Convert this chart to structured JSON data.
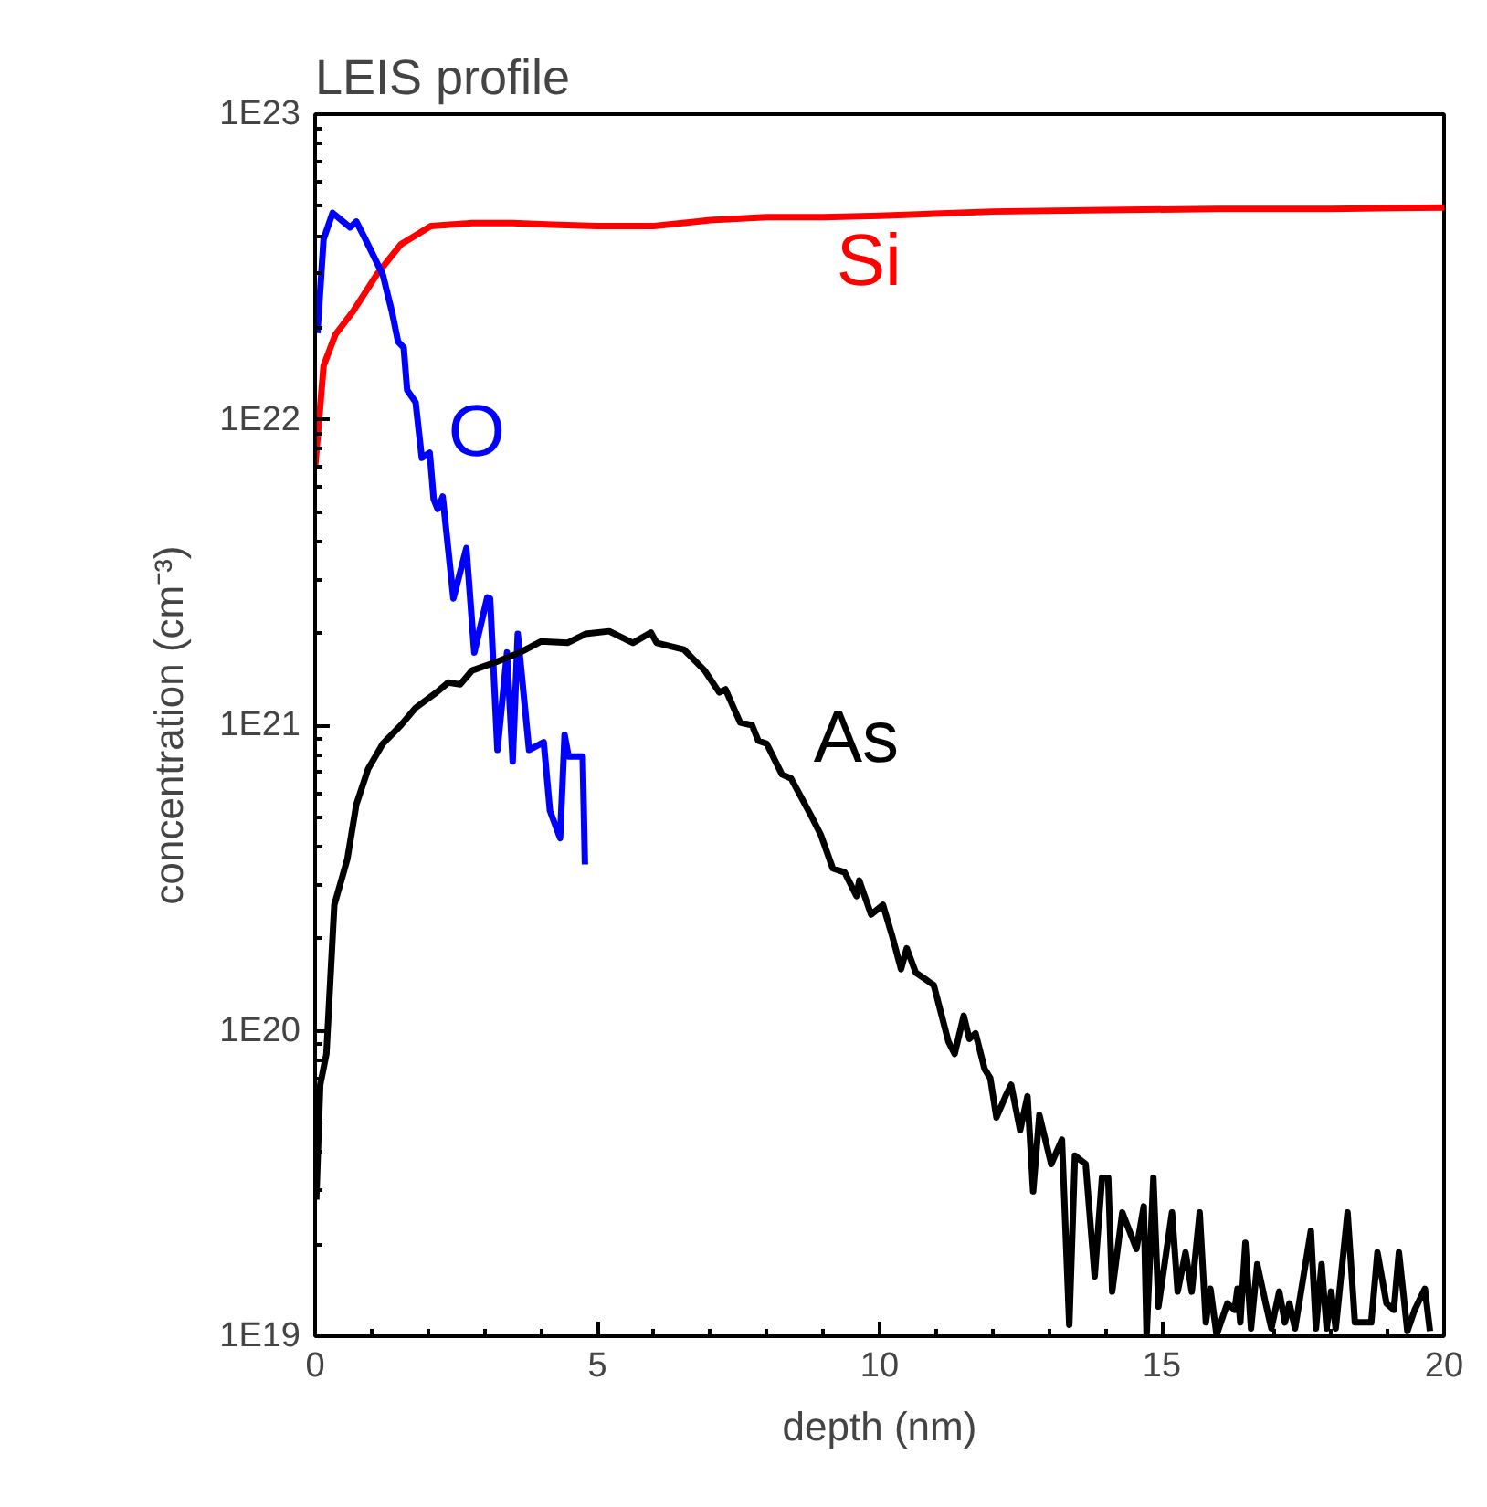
{
  "chart_data": {
    "type": "line",
    "title": "LEIS profile",
    "xlabel": "depth (nm)",
    "ylabel": "concentration (cm⁻³)",
    "log": "y",
    "grid": false,
    "legend": false,
    "line_style": "solid",
    "marker": "none",
    "xlim": [
      0,
      20
    ],
    "xticks": [
      0,
      5,
      10,
      15,
      20
    ],
    "ylim": [
      1e+19,
      1e+23
    ],
    "yticks": [
      {
        "value": 1e+19,
        "label": "1E19"
      },
      {
        "value": 1e+20,
        "label": "1E20"
      },
      {
        "value": 1e+21,
        "label": "1E21"
      },
      {
        "value": 1e+22,
        "label": "1E22"
      },
      {
        "value": 1e+23,
        "label": "1E23"
      }
    ],
    "series": [
      {
        "name": "Si",
        "color": "#ff0000",
        "x": [
          0,
          0.15,
          0.36,
          0.67,
          1.1,
          1.52,
          2.05,
          2.78,
          3.5,
          4.2,
          5,
          6,
          7,
          8,
          9,
          10,
          12,
          14,
          16,
          18,
          20
        ],
        "values": [
          7e+21,
          1.5e+22,
          1.9e+22,
          2.26e+22,
          3e+22,
          3.75e+22,
          4.3e+22,
          4.4e+22,
          4.4e+22,
          4.35e+22,
          4.3e+22,
          4.3e+22,
          4.5e+22,
          4.6e+22,
          4.6e+22,
          4.65e+22,
          4.8e+22,
          4.85e+22,
          4.9e+22,
          4.9e+22,
          4.95e+22
        ]
      },
      {
        "name": "O",
        "color": "#0000ff",
        "x": [
          0.04,
          0.15,
          0.31,
          0.62,
          0.73,
          0.89,
          1.2,
          1.36,
          1.47,
          1.57,
          1.63,
          1.78,
          1.89,
          2.03,
          2.1,
          2.17,
          2.26,
          2.45,
          2.68,
          2.82,
          3.05,
          3.1,
          3.23,
          3.4,
          3.5,
          3.59,
          3.79,
          4.05,
          4.16,
          4.34,
          4.42,
          4.49,
          4.74,
          4.78
        ],
        "values": [
          1.92e+22,
          3.9e+22,
          4.75e+22,
          4.26e+22,
          4.45e+22,
          3.9e+22,
          2.98e+22,
          2.26e+22,
          1.8e+22,
          1.72e+22,
          1.25e+22,
          1.14e+22,
          7.5e+21,
          7.8e+21,
          5.5e+21,
          5.1e+21,
          5.6e+21,
          2.6e+21,
          3.8e+21,
          1.73e+21,
          2.62e+21,
          2.6e+21,
          8.3e+20,
          1.73e+21,
          7.6e+20,
          1.99e+21,
          8.3e+20,
          8.8e+20,
          5.25e+20,
          4.27e+20,
          9.3e+20,
          7.9e+20,
          7.9e+20,
          3.5e+20
        ]
      },
      {
        "name": "As",
        "color": "#000000",
        "x": [
          0.02,
          0.09,
          0.2,
          0.34,
          0.57,
          0.73,
          0.94,
          1.2,
          1.52,
          1.78,
          2.15,
          2.36,
          2.57,
          2.78,
          3.21,
          3.63,
          4.0,
          4.47,
          4.79,
          5.21,
          5.63,
          5.95,
          6.05,
          6.53,
          6.9,
          7.16,
          7.27,
          7.53,
          7.74,
          7.85,
          8.0,
          8.27,
          8.43,
          8.8,
          8.96,
          9.17,
          9.38,
          9.59,
          9.64,
          9.85,
          10.06,
          10.22,
          10.38,
          10.48,
          10.64,
          10.96,
          11.22,
          11.33,
          11.49,
          11.59,
          11.7,
          11.86,
          11.96,
          12.07,
          12.23,
          12.33,
          12.49,
          12.62,
          12.72,
          12.83,
          13.04,
          13.23,
          13.36,
          13.46,
          13.65,
          13.81,
          13.94,
          14.05,
          14.12,
          14.3,
          14.55,
          14.68,
          14.73,
          14.85,
          14.94,
          15.18,
          15.28,
          15.42,
          15.53,
          15.67,
          15.78,
          15.86,
          15.97,
          16.16,
          16.29,
          16.34,
          16.39,
          16.48,
          16.58,
          16.69,
          16.84,
          16.94,
          17.08,
          17.18,
          17.26,
          17.36,
          17.64,
          17.73,
          17.83,
          17.92,
          18.0,
          18.08,
          18.29,
          18.42,
          18.71,
          18.82,
          18.98,
          19.11,
          19.2,
          19.35,
          19.48,
          19.66,
          19.75
        ],
        "values": [
          2.8e+19,
          6.65e+19,
          8.4e+19,
          2.58e+20,
          3.64e+20,
          5.5e+20,
          7.2e+20,
          8.7e+20,
          1e+21,
          1.14e+21,
          1.28e+21,
          1.38e+21,
          1.36e+21,
          1.51e+21,
          1.61e+21,
          1.73e+21,
          1.88e+21,
          1.86e+21,
          1.99e+21,
          2.03e+21,
          1.86e+21,
          2.01e+21,
          1.86e+21,
          1.77e+21,
          1.51e+21,
          1.28e+21,
          1.31e+21,
          1.02e+21,
          1e+21,
          8.9e+20,
          8.7e+20,
          6.9e+20,
          6.7e+20,
          5e+20,
          4.37e+20,
          3.4e+20,
          3.3e+20,
          2.76e+20,
          3.1e+20,
          2.4e+20,
          2.58e+20,
          2.05e+20,
          1.59e+20,
          1.86e+20,
          1.55e+20,
          1.41e+20,
          9.2e+19,
          8.4e+19,
          1.12e+20,
          9.4e+19,
          9.8e+19,
          7.5e+19,
          7e+19,
          5.2e+19,
          6.1e+19,
          6.65e+19,
          4.72e+19,
          6.1e+19,
          2.98e+19,
          5.3e+19,
          3.66e+19,
          4.4e+19,
          1.09e+19,
          3.9e+19,
          3.66e+19,
          1.57e+19,
          3.3e+19,
          3.3e+19,
          1.4e+19,
          2.54e+19,
          1.93e+19,
          2.66e+19,
          1.01e+19,
          3.3e+19,
          1.25e+19,
          2.54e+19,
          1.4e+19,
          1.88e+19,
          1.4e+19,
          2.54e+19,
          1.11e+19,
          1.43e+19,
          1.01e+19,
          1.28e+19,
          1.22e+19,
          1.43e+19,
          1.11e+19,
          2.02e+19,
          1.06e+19,
          1.72e+19,
          1.28e+19,
          1.06e+19,
          1.4e+19,
          1.11e+19,
          1.28e+19,
          1.06e+19,
          2.21e+19,
          1.06e+19,
          1.72e+19,
          1.06e+19,
          1.4e+19,
          1.06e+19,
          2.54e+19,
          1.11e+19,
          1.11e+19,
          1.88e+19,
          1.28e+19,
          1.22e+19,
          1.88e+19,
          1.04e+19,
          1.22e+19,
          1.43e+19,
          1.04e+19
        ]
      }
    ]
  }
}
